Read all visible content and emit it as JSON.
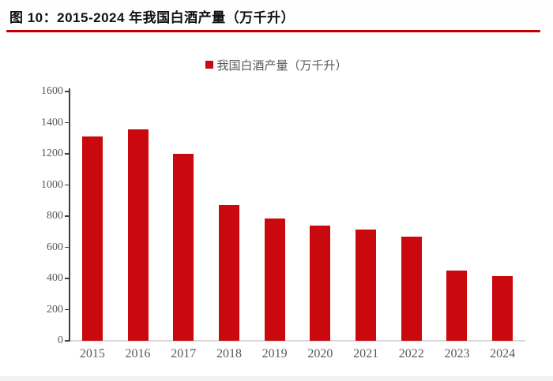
{
  "page": {
    "title": "图 10：2015-2024 年我国白酒产量（万千升）",
    "accent_color": "#C9090E",
    "rule_color": "#C00000"
  },
  "legend": {
    "marker_icon": "red-square-icon",
    "label": "我国白酒产量（万千升）",
    "text_color": "#595959"
  },
  "chart_data": {
    "type": "bar",
    "title": "2015-2024 年我国白酒产量（万千升）",
    "categories": [
      "2015",
      "2016",
      "2017",
      "2018",
      "2019",
      "2020",
      "2021",
      "2022",
      "2023",
      "2024"
    ],
    "values": [
      1313,
      1358,
      1198,
      871,
      786,
      741,
      716,
      671,
      449,
      415
    ],
    "series_name": "我国白酒产量（万千升）",
    "bar_color": "#C9090E",
    "xlabel": "",
    "ylabel": "",
    "ylim": [
      0,
      1600
    ],
    "ytick_step": 200,
    "yticks": [
      0,
      200,
      400,
      600,
      800,
      1000,
      1200,
      1400,
      1600
    ],
    "grid": false,
    "legend_position": "top-center"
  }
}
